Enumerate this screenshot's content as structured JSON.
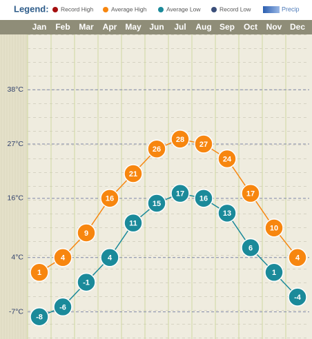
{
  "chart_data": {
    "type": "line",
    "legend_title": "Legend:",
    "legend_items": [
      {
        "name": "Record High",
        "color": "#a50f0f"
      },
      {
        "name": "Record Low",
        "color": "#3b4f7a"
      },
      {
        "name": "Precip",
        "color": "#3f6fbf",
        "marker": "bar"
      }
    ],
    "categories": [
      "Jan",
      "Feb",
      "Mar",
      "Apr",
      "May",
      "Jun",
      "Jul",
      "Aug",
      "Sep",
      "Oct",
      "Nov",
      "Dec"
    ],
    "series": [
      {
        "name": "Average High",
        "color": "#f7860f",
        "values": [
          1,
          4,
          9,
          16,
          21,
          26,
          28,
          27,
          24,
          17,
          10,
          4
        ]
      },
      {
        "name": "Average Low",
        "color": "#1b8a9a",
        "values": [
          -8,
          -6,
          -1,
          4,
          11,
          15,
          17,
          16,
          13,
          6,
          1,
          -4
        ]
      }
    ],
    "ylim": [
      -12.5,
      49.2
    ],
    "yticks": [
      {
        "value": -7,
        "label": "-7°C"
      },
      {
        "value": 4,
        "label": "4°C"
      },
      {
        "value": 16,
        "label": "16°C"
      },
      {
        "value": 27,
        "label": "27°C"
      },
      {
        "value": 38,
        "label": "38°C"
      }
    ],
    "grid": true
  }
}
